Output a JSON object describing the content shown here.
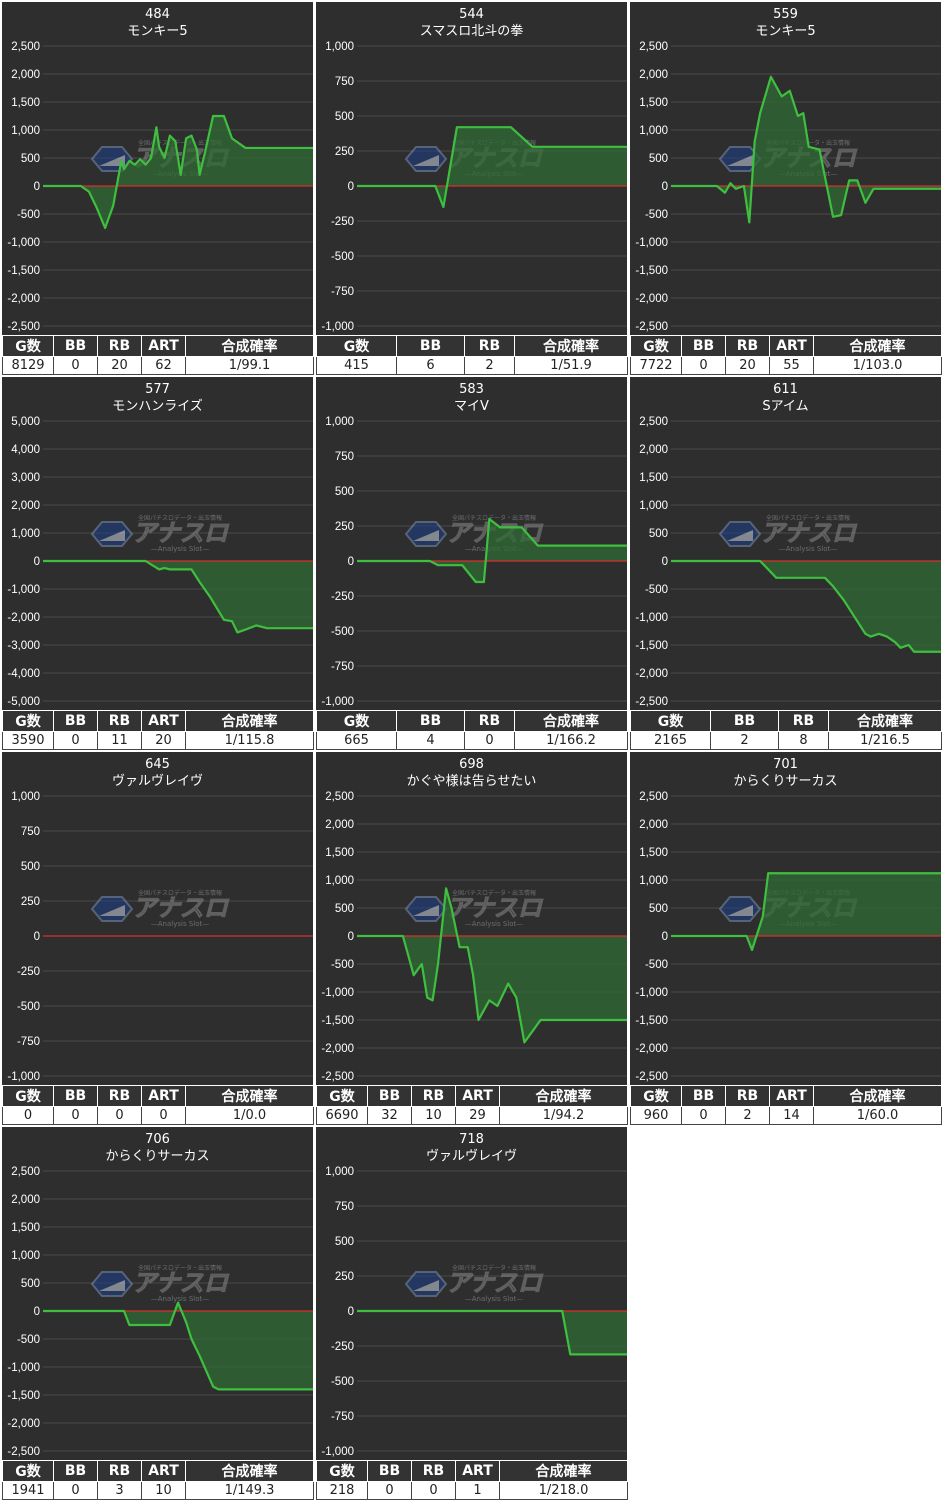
{
  "colors": {
    "panel_bg": "#2e2e2e",
    "line": "#3fbf3f",
    "fill": "#2f6b34",
    "zero_line": "#d83030",
    "grid": "#4a4a4a",
    "header_bg": "#333333"
  },
  "watermark": {
    "brand": "アナスロ",
    "sub": "—Analysis Slot—",
    "tagline": "全国パチスロデータ・出玉情報"
  },
  "panels": [
    {
      "number": "484",
      "name": "モンキー5",
      "headers": [
        "G数",
        "BB",
        "RB",
        "ART",
        "合成確率"
      ],
      "values": [
        "8129",
        "0",
        "20",
        "62",
        "1/99.1"
      ]
    },
    {
      "number": "544",
      "name": "スマスロ北斗の拳",
      "headers": [
        "G数",
        "BB",
        "RB",
        "合成確率"
      ],
      "values": [
        "415",
        "6",
        "2",
        "1/51.9"
      ]
    },
    {
      "number": "559",
      "name": "モンキー5",
      "headers": [
        "G数",
        "BB",
        "RB",
        "ART",
        "合成確率"
      ],
      "values": [
        "7722",
        "0",
        "20",
        "55",
        "1/103.0"
      ]
    },
    {
      "number": "577",
      "name": "モンハンライズ",
      "headers": [
        "G数",
        "BB",
        "RB",
        "ART",
        "合成確率"
      ],
      "values": [
        "3590",
        "0",
        "11",
        "20",
        "1/115.8"
      ]
    },
    {
      "number": "583",
      "name": "マイV",
      "headers": [
        "G数",
        "BB",
        "RB",
        "合成確率"
      ],
      "values": [
        "665",
        "4",
        "0",
        "1/166.2"
      ]
    },
    {
      "number": "611",
      "name": "Sアイム",
      "headers": [
        "G数",
        "BB",
        "RB",
        "合成確率"
      ],
      "values": [
        "2165",
        "2",
        "8",
        "1/216.5"
      ]
    },
    {
      "number": "645",
      "name": "ヴァルヴレイヴ",
      "headers": [
        "G数",
        "BB",
        "RB",
        "ART",
        "合成確率"
      ],
      "values": [
        "0",
        "0",
        "0",
        "0",
        "1/0.0"
      ]
    },
    {
      "number": "698",
      "name": "かぐや様は告らせたい",
      "headers": [
        "G数",
        "BB",
        "RB",
        "ART",
        "合成確率"
      ],
      "values": [
        "6690",
        "32",
        "10",
        "29",
        "1/94.2"
      ]
    },
    {
      "number": "701",
      "name": "からくりサーカス",
      "headers": [
        "G数",
        "BB",
        "RB",
        "ART",
        "合成確率"
      ],
      "values": [
        "960",
        "0",
        "2",
        "14",
        "1/60.0"
      ]
    },
    {
      "number": "706",
      "name": "からくりサーカス",
      "headers": [
        "G数",
        "BB",
        "RB",
        "ART",
        "合成確率"
      ],
      "values": [
        "1941",
        "0",
        "3",
        "10",
        "1/149.3"
      ]
    },
    {
      "number": "718",
      "name": "ヴァルヴレイヴ",
      "headers": [
        "G数",
        "BB",
        "RB",
        "ART",
        "合成確率"
      ],
      "values": [
        "218",
        "0",
        "0",
        "1",
        "1/218.0"
      ]
    }
  ],
  "chart_data": [
    {
      "type": "area",
      "title": "484 モンキー5",
      "ylim": [
        -2500,
        2500
      ],
      "yticks": [
        "2,500",
        "2,000",
        "1,500",
        "1,000",
        "500",
        "0",
        "-500",
        "-1,000",
        "-1,500",
        "-2,000",
        "-2,500"
      ],
      "x": [
        0,
        0.14,
        0.17,
        0.2,
        0.23,
        0.26,
        0.29,
        0.3,
        0.32,
        0.34,
        0.36,
        0.38,
        0.4,
        0.42,
        0.43,
        0.45,
        0.47,
        0.49,
        0.51,
        0.53,
        0.55,
        0.57,
        0.58,
        0.6,
        0.63,
        0.65,
        0.67,
        0.7,
        0.75,
        1.0
      ],
      "y": [
        0,
        0,
        -100,
        -400,
        -750,
        -350,
        450,
        300,
        450,
        380,
        480,
        380,
        500,
        1050,
        700,
        500,
        900,
        800,
        200,
        850,
        900,
        650,
        200,
        600,
        1250,
        1250,
        1250,
        850,
        680,
        680
      ]
    },
    {
      "type": "area",
      "title": "544 スマスロ北斗の拳",
      "ylim": [
        -1000,
        1000
      ],
      "yticks": [
        "1,000",
        "750",
        "500",
        "250",
        "0",
        "-250",
        "-500",
        "-750",
        "-1,000"
      ],
      "x": [
        0,
        0.29,
        0.32,
        0.37,
        0.57,
        0.65,
        1.0
      ],
      "y": [
        0,
        0,
        -150,
        420,
        420,
        280,
        280
      ]
    },
    {
      "type": "area",
      "title": "559 モンキー5",
      "ylim": [
        -2500,
        2500
      ],
      "yticks": [
        "2,500",
        "2,000",
        "1,500",
        "1,000",
        "500",
        "0",
        "-500",
        "-1,000",
        "-1,500",
        "-2,000",
        "-2,500"
      ],
      "x": [
        0,
        0.17,
        0.2,
        0.22,
        0.24,
        0.27,
        0.29,
        0.31,
        0.33,
        0.37,
        0.41,
        0.44,
        0.47,
        0.49,
        0.51,
        0.55,
        0.6,
        0.63,
        0.66,
        0.69,
        0.72,
        0.75,
        0.79,
        1.0
      ],
      "y": [
        0,
        0,
        -120,
        50,
        -50,
        0,
        -650,
        800,
        1300,
        1950,
        1600,
        1700,
        1250,
        1300,
        700,
        650,
        -550,
        -520,
        100,
        100,
        -300,
        -50,
        -50,
        -50
      ]
    },
    {
      "type": "area",
      "title": "577 モンハンライズ",
      "ylim": [
        -5000,
        5000
      ],
      "yticks": [
        "5,000",
        "4,000",
        "3,000",
        "2,000",
        "1,000",
        "0",
        "-1,000",
        "-2,000",
        "-3,000",
        "-4,000",
        "-5,000"
      ],
      "x": [
        0,
        0.38,
        0.43,
        0.45,
        0.47,
        0.55,
        0.58,
        0.62,
        0.67,
        0.7,
        0.72,
        0.75,
        0.79,
        0.83,
        1.0
      ],
      "y": [
        0,
        0,
        -300,
        -250,
        -300,
        -300,
        -750,
        -1300,
        -2100,
        -2150,
        -2550,
        -2450,
        -2300,
        -2400,
        -2400
      ]
    },
    {
      "type": "area",
      "title": "583 マイV",
      "ylim": [
        -1000,
        1000
      ],
      "yticks": [
        "1,000",
        "750",
        "500",
        "250",
        "0",
        "-250",
        "-500",
        "-750",
        "-1,000"
      ],
      "x": [
        0,
        0.27,
        0.3,
        0.39,
        0.44,
        0.47,
        0.49,
        0.53,
        0.61,
        0.67,
        1.0
      ],
      "y": [
        0,
        0,
        -30,
        -30,
        -150,
        -150,
        300,
        240,
        240,
        110,
        110
      ]
    },
    {
      "type": "area",
      "title": "611 Sアイム",
      "ylim": [
        -2500,
        2500
      ],
      "yticks": [
        "2,500",
        "2,000",
        "1,500",
        "1,000",
        "500",
        "0",
        "-500",
        "-1,000",
        "-1,500",
        "-2,000",
        "-2,500"
      ],
      "x": [
        0,
        0.33,
        0.37,
        0.39,
        0.57,
        0.6,
        0.64,
        0.68,
        0.72,
        0.74,
        0.77,
        0.8,
        0.83,
        0.85,
        0.88,
        0.9,
        0.93,
        1.0
      ],
      "y": [
        0,
        0,
        -200,
        -300,
        -300,
        -450,
        -700,
        -1000,
        -1300,
        -1350,
        -1300,
        -1350,
        -1450,
        -1550,
        -1500,
        -1620,
        -1620,
        -1620
      ]
    },
    {
      "type": "area",
      "title": "645 ヴァルヴレイヴ",
      "ylim": [
        -1000,
        1000
      ],
      "yticks": [
        "1,000",
        "750",
        "500",
        "250",
        "0",
        "-250",
        "-500",
        "-750",
        "-1,000"
      ],
      "x": [],
      "y": []
    },
    {
      "type": "area",
      "title": "698 かぐや様は告らせたい",
      "ylim": [
        -2500,
        2500
      ],
      "yticks": [
        "2,500",
        "2,000",
        "1,500",
        "1,000",
        "500",
        "0",
        "-500",
        "-1,000",
        "-1,500",
        "-2,000",
        "-2,500"
      ],
      "x": [
        0,
        0.17,
        0.21,
        0.24,
        0.26,
        0.28,
        0.3,
        0.33,
        0.35,
        0.38,
        0.41,
        0.43,
        0.45,
        0.49,
        0.52,
        0.56,
        0.59,
        0.62,
        0.65,
        0.68,
        0.71,
        0.73,
        0.79,
        1.0
      ],
      "y": [
        0,
        0,
        -700,
        -500,
        -1100,
        -1150,
        -500,
        850,
        500,
        -200,
        -200,
        -700,
        -1500,
        -1150,
        -1250,
        -850,
        -1100,
        -1900,
        -1700,
        -1500,
        -1500,
        -1500,
        -1500,
        -1500
      ]
    },
    {
      "type": "area",
      "title": "701 からくりサーカス",
      "ylim": [
        -2500,
        2500
      ],
      "yticks": [
        "2,500",
        "2,000",
        "1,500",
        "1,000",
        "500",
        "0",
        "-500",
        "-1,000",
        "-1,500",
        "-2,000",
        "-2,500"
      ],
      "x": [
        0,
        0.28,
        0.3,
        0.34,
        0.36,
        1.0
      ],
      "y": [
        0,
        0,
        -250,
        350,
        1120,
        1120
      ]
    },
    {
      "type": "area",
      "title": "706 からくりサーカス",
      "ylim": [
        -2500,
        2500
      ],
      "yticks": [
        "2,500",
        "2,000",
        "1,500",
        "1,000",
        "500",
        "0",
        "-500",
        "-1,000",
        "-1,500",
        "-2,000",
        "-2,500"
      ],
      "x": [
        0,
        0.3,
        0.32,
        0.47,
        0.5,
        0.53,
        0.55,
        0.58,
        0.63,
        0.65,
        1.0
      ],
      "y": [
        0,
        0,
        -250,
        -250,
        150,
        -200,
        -500,
        -800,
        -1350,
        -1400,
        -1400
      ]
    },
    {
      "type": "area",
      "title": "718 ヴァルヴレイヴ",
      "ylim": [
        -1000,
        1000
      ],
      "yticks": [
        "1,000",
        "750",
        "500",
        "250",
        "0",
        "-250",
        "-500",
        "-750",
        "-1,000"
      ],
      "x": [
        0,
        0.76,
        0.79,
        1.0
      ],
      "y": [
        0,
        0,
        -310,
        -310
      ]
    }
  ]
}
